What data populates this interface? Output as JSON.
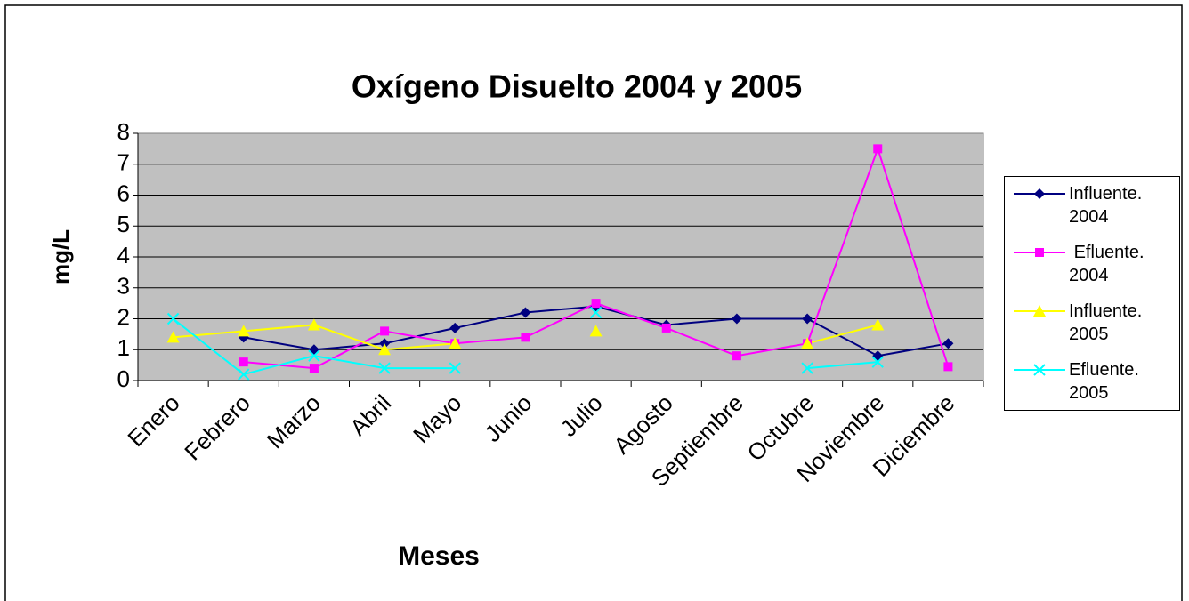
{
  "chart_data": {
    "type": "line",
    "title": "Oxígeno Disuelto 2004 y 2005",
    "x_label": "Meses",
    "y_label": "mg/L",
    "categories": [
      "Enero",
      "Febrero",
      "Marzo",
      "Abril",
      "Mayo",
      "Junio",
      "Julio",
      "Agosto",
      "Septiembre",
      "Octubre",
      "Noviembre",
      "Diciembre"
    ],
    "series": [
      {
        "name": "Influente. 2004",
        "color": "#000080",
        "marker": "diamond",
        "values": [
          null,
          1.4,
          1.0,
          1.2,
          1.7,
          2.2,
          2.4,
          1.8,
          2.0,
          2.0,
          0.8,
          1.2
        ]
      },
      {
        "name": " Efluente. 2004",
        "color": "#ff00ff",
        "marker": "square",
        "values": [
          null,
          0.6,
          0.4,
          1.6,
          1.2,
          1.4,
          2.5,
          1.7,
          0.8,
          1.2,
          7.5,
          0.45
        ]
      },
      {
        "name": "Influente. 2005",
        "color": "#ffff00",
        "marker": "triangle",
        "values": [
          1.4,
          1.6,
          1.8,
          1.0,
          1.2,
          null,
          1.6,
          null,
          null,
          1.2,
          1.8,
          null
        ]
      },
      {
        "name": "Efluente. 2005",
        "color": "#00ffff",
        "marker": "x",
        "values": [
          2.0,
          0.2,
          0.8,
          0.4,
          0.4,
          null,
          2.2,
          null,
          null,
          0.4,
          0.6,
          null
        ]
      }
    ],
    "ylim": [
      0,
      8
    ],
    "yticks": [
      0,
      1,
      2,
      3,
      4,
      5,
      6,
      7,
      8
    ],
    "grid": true,
    "legend": "right"
  }
}
